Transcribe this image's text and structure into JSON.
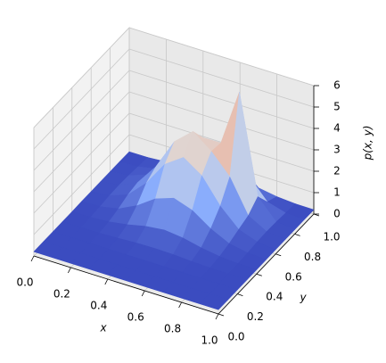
{
  "chart_data": {
    "type": "surface",
    "colormap": "coolwarm",
    "x_label": "x",
    "y_label": "y",
    "z_label": "p(x, y)",
    "x": [
      0,
      0.1,
      0.2,
      0.3,
      0.4,
      0.5,
      0.6,
      0.7,
      0.8,
      0.9,
      1.0
    ],
    "y": [
      0,
      0.1,
      0.2,
      0.3,
      0.4,
      0.5,
      0.6,
      0.7,
      0.8,
      0.9,
      1.0
    ],
    "z": [
      [
        0.2,
        0.2,
        0.2,
        0.2,
        0.2,
        0.2,
        0.2,
        0.2,
        0.2,
        0.2,
        0.2
      ],
      [
        0.2,
        0.2,
        0.2,
        0.2,
        0.2,
        0.2,
        0.2,
        0.2,
        0.2,
        0.2,
        0.2
      ],
      [
        0.2,
        0.2,
        0.2,
        0.2,
        0.2,
        0.21,
        0.2,
        0.2,
        0.2,
        0.2,
        0.2
      ],
      [
        0.2,
        0.2,
        0.21,
        0.24,
        0.29,
        0.31,
        0.29,
        0.24,
        0.21,
        0.2,
        0.2
      ],
      [
        0.2,
        0.21,
        0.27,
        0.41,
        0.6,
        0.7,
        0.6,
        0.41,
        0.27,
        0.21,
        0.2
      ],
      [
        0.21,
        0.24,
        0.41,
        0.83,
        1.42,
        1.72,
        1.42,
        0.83,
        0.41,
        0.24,
        0.21
      ],
      [
        0.21,
        0.29,
        0.6,
        1.42,
        2.57,
        3.16,
        2.57,
        1.42,
        0.6,
        0.29,
        0.21
      ],
      [
        0.21,
        0.31,
        0.7,
        1.72,
        3.16,
        3.9,
        3.24,
        2.32,
        0.78,
        0.31,
        0.21
      ],
      [
        0.21,
        0.29,
        0.6,
        1.42,
        2.57,
        3.16,
        3.17,
        5.82,
        1.2,
        0.29,
        0.21
      ],
      [
        0.21,
        0.24,
        0.41,
        0.83,
        1.42,
        1.72,
        1.5,
        1.43,
        0.49,
        0.24,
        0.21
      ],
      [
        0.2,
        0.21,
        0.27,
        0.41,
        0.6,
        0.7,
        0.6,
        0.41,
        0.27,
        0.21,
        0.2
      ]
    ],
    "xlim": [
      0,
      1
    ],
    "ylim": [
      0,
      1
    ],
    "zlim": [
      0,
      6
    ],
    "xticks": [
      {
        "value": 0,
        "label": "0.0"
      },
      0.2,
      0.4,
      0.6,
      0.8,
      {
        "value": 1,
        "label": "1.0"
      }
    ],
    "yticks": [
      {
        "value": 0,
        "label": "0.0"
      },
      0.2,
      0.4,
      0.6,
      0.8,
      {
        "value": 1,
        "label": "1.0"
      }
    ],
    "zticks": [
      0,
      1,
      2,
      3,
      4,
      5,
      6
    ],
    "grid": true
  }
}
